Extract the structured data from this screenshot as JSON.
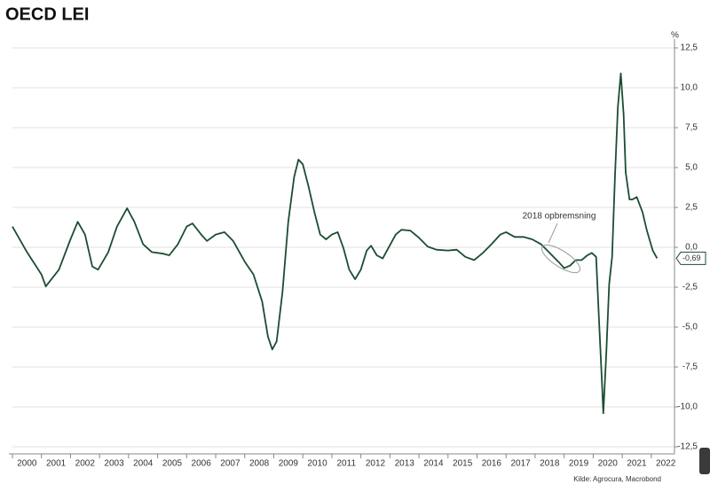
{
  "chart_data": {
    "type": "line",
    "title": "OECD LEI",
    "y_unit": "%",
    "annotation": "2018 opbremsning",
    "source": "Kilde: Agrocura, Macrobond",
    "end_label": {
      "value": -0.69,
      "label": "-0,69"
    },
    "xlim": [
      2000,
      2022.8
    ],
    "xticks": [
      2000,
      2001,
      2002,
      2003,
      2004,
      2005,
      2006,
      2007,
      2008,
      2009,
      2010,
      2011,
      2012,
      2013,
      2014,
      2015,
      2016,
      2017,
      2018,
      2019,
      2020,
      2021,
      2022
    ],
    "ylim": [
      -12.5,
      12.5
    ],
    "yticks": [
      {
        "value": -12.5,
        "label": "-12,5"
      },
      {
        "value": -10,
        "label": "-10,0"
      },
      {
        "value": -7.5,
        "label": "-7,5"
      },
      {
        "value": -5,
        "label": "-5,0"
      },
      {
        "value": -2.5,
        "label": "-2,5"
      },
      {
        "value": 0,
        "label": "0,0"
      },
      {
        "value": 2.5,
        "label": "2,5"
      },
      {
        "value": 5,
        "label": "5,0"
      },
      {
        "value": 7.5,
        "label": "7,5"
      },
      {
        "value": 10,
        "label": "10,0"
      },
      {
        "value": 12.5,
        "label": "12,5"
      }
    ],
    "grid": true,
    "x": [
      2000.0,
      2000.5,
      2001.0,
      2001.15,
      2001.6,
      2002.0,
      2002.25,
      2002.5,
      2002.75,
      2002.95,
      2003.3,
      2003.6,
      2003.95,
      2004.2,
      2004.5,
      2004.8,
      2005.2,
      2005.4,
      2005.7,
      2006.0,
      2006.2,
      2006.5,
      2006.7,
      2007.0,
      2007.3,
      2007.6,
      2008.0,
      2008.3,
      2008.6,
      2008.8,
      2008.95,
      2009.1,
      2009.3,
      2009.5,
      2009.7,
      2009.85,
      2010.0,
      2010.2,
      2010.4,
      2010.6,
      2010.8,
      2011.0,
      2011.2,
      2011.4,
      2011.6,
      2011.8,
      2012.0,
      2012.2,
      2012.35,
      2012.55,
      2012.75,
      2012.9,
      2013.2,
      2013.4,
      2013.7,
      2014.0,
      2014.3,
      2014.6,
      2015.0,
      2015.3,
      2015.6,
      2015.9,
      2016.2,
      2016.5,
      2016.8,
      2017.0,
      2017.3,
      2017.6,
      2017.9,
      2018.2,
      2018.5,
      2018.8,
      2019.0,
      2019.2,
      2019.4,
      2019.6,
      2019.8,
      2019.95,
      2020.1,
      2020.2,
      2020.3,
      2020.35,
      2020.45,
      2020.55,
      2020.65,
      2020.75,
      2020.85,
      2020.95,
      2021.05,
      2021.12,
      2021.25,
      2021.35,
      2021.5,
      2021.7,
      2021.85,
      2022.05,
      2022.2
    ],
    "series": [
      {
        "name": "OECD LEI",
        "color": "#1b4d32",
        "values": [
          1.3,
          -0.3,
          -1.7,
          -2.45,
          -1.4,
          0.5,
          1.6,
          0.8,
          -1.2,
          -1.4,
          -0.3,
          1.3,
          2.45,
          1.6,
          0.2,
          -0.3,
          -0.4,
          -0.5,
          0.2,
          1.3,
          1.5,
          0.8,
          0.4,
          0.8,
          0.95,
          0.4,
          -0.9,
          -1.7,
          -3.4,
          -5.6,
          -6.4,
          -5.9,
          -2.8,
          1.6,
          4.4,
          5.5,
          5.2,
          3.8,
          2.2,
          0.8,
          0.5,
          0.8,
          0.95,
          -0.05,
          -1.4,
          -2.0,
          -1.4,
          -0.2,
          0.1,
          -0.5,
          -0.7,
          -0.2,
          0.8,
          1.1,
          1.05,
          0.6,
          0.05,
          -0.15,
          -0.2,
          -0.15,
          -0.6,
          -0.8,
          -0.35,
          0.2,
          0.8,
          0.95,
          0.65,
          0.65,
          0.5,
          0.2,
          -0.35,
          -0.9,
          -1.3,
          -1.15,
          -0.8,
          -0.8,
          -0.5,
          -0.35,
          -0.6,
          -4.5,
          -8.4,
          -10.4,
          -6.7,
          -2.3,
          -0.6,
          4.4,
          8.8,
          10.9,
          8.3,
          4.7,
          3.0,
          3.0,
          3.15,
          2.2,
          1.05,
          -0.2,
          -0.69
        ]
      }
    ]
  }
}
